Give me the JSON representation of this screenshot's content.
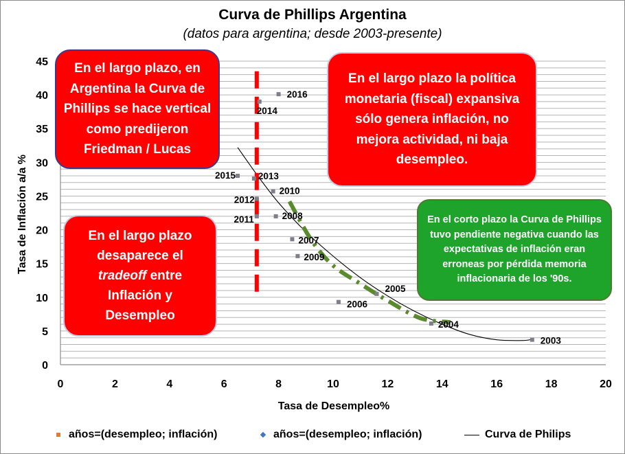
{
  "chart_data": {
    "type": "scatter",
    "title": "Curva de Phillips Argentina",
    "subtitle": "(datos para argentina; desde 2003-presente)",
    "xlabel": "Tasa de Desempleo%",
    "ylabel": "Tasa de Inflación a/a %",
    "xlim": [
      0,
      20
    ],
    "ylim": [
      0,
      45
    ],
    "x_ticks": [
      "0",
      "2",
      "4",
      "6",
      "8",
      "10",
      "12",
      "14",
      "16",
      "18",
      "20"
    ],
    "y_ticks": [
      "0",
      "5",
      "10",
      "15",
      "20",
      "25",
      "30",
      "35",
      "40",
      "45"
    ],
    "grid": "horizontal",
    "points": [
      {
        "label": "2003",
        "x": 17.3,
        "y": 3.7
      },
      {
        "label": "2004",
        "x": 13.6,
        "y": 6.1
      },
      {
        "label": "2005",
        "x": 11.6,
        "y": 10.5
      },
      {
        "label": "2006",
        "x": 10.2,
        "y": 9.3
      },
      {
        "label": "2007",
        "x": 8.5,
        "y": 18.6
      },
      {
        "label": "2008",
        "x": 7.9,
        "y": 22.0
      },
      {
        "label": "2009",
        "x": 8.7,
        "y": 16.1
      },
      {
        "label": "2010",
        "x": 7.8,
        "y": 25.7
      },
      {
        "label": "2011",
        "x": 7.2,
        "y": 22.0
      },
      {
        "label": "2012",
        "x": 7.2,
        "y": 24.6
      },
      {
        "label": "2013",
        "x": 7.1,
        "y": 27.6
      },
      {
        "label": "2014",
        "x": 7.3,
        "y": 39.0
      },
      {
        "label": "2015",
        "x": 6.5,
        "y": 28.0
      },
      {
        "label": "2016",
        "x": 8.0,
        "y": 40.1
      }
    ],
    "curve": [
      [
        6.5,
        32.2
      ],
      [
        7.2,
        28.2
      ],
      [
        8.0,
        24.0
      ],
      [
        9.0,
        19.7
      ],
      [
        10.0,
        16.1
      ],
      [
        11.0,
        12.9
      ],
      [
        12.0,
        10.2
      ],
      [
        13.0,
        7.9
      ],
      [
        14.0,
        6.0
      ],
      [
        15.0,
        4.5
      ],
      [
        16.0,
        3.7
      ],
      [
        17.0,
        3.6
      ],
      [
        17.3,
        3.8
      ]
    ],
    "long_run_line": {
      "x": 7.2,
      "y_from": 10.5,
      "y_to": 43.5,
      "color": "#ff0000"
    },
    "short_run_line": {
      "points": [
        [
          8.4,
          24.2
        ],
        [
          9.2,
          18.5
        ],
        [
          10.0,
          14.7
        ],
        [
          11.0,
          12.0
        ],
        [
          12.0,
          9.5
        ],
        [
          13.2,
          6.9
        ],
        [
          14.3,
          6.3
        ]
      ],
      "color": "#5a8a2e"
    },
    "legend": [
      {
        "label": "años=(desempleo; inflación)",
        "marker": "square",
        "color": "#e07b39"
      },
      {
        "label": "años=(desempleo; inflación)",
        "marker": "diamond",
        "color": "#4472c4"
      },
      {
        "label": "Curva de Philips",
        "marker": "line",
        "color": "#000000"
      }
    ],
    "point_color": "#7f7f8c"
  },
  "annotations": {
    "box1": "En el largo plazo, en Argentina la Curva de Phillips se hace vertical como predijeron Friedman / Lucas",
    "box2": "En el largo plazo la política monetaria (fiscal) expansiva sólo genera inflación, no mejora actividad, ni baja desempleo.",
    "box3_before": "En el largo plazo desaparece el",
    "box3_italic": "tradeoff",
    "box3_after": "entre Inflación y Desempleo",
    "box4": "En el corto plazo la Curva de Phillips tuvo pendiente negativa cuando las expectativas de inflación eran erroneas por pérdida memoria inflacionaria de los '90s."
  }
}
